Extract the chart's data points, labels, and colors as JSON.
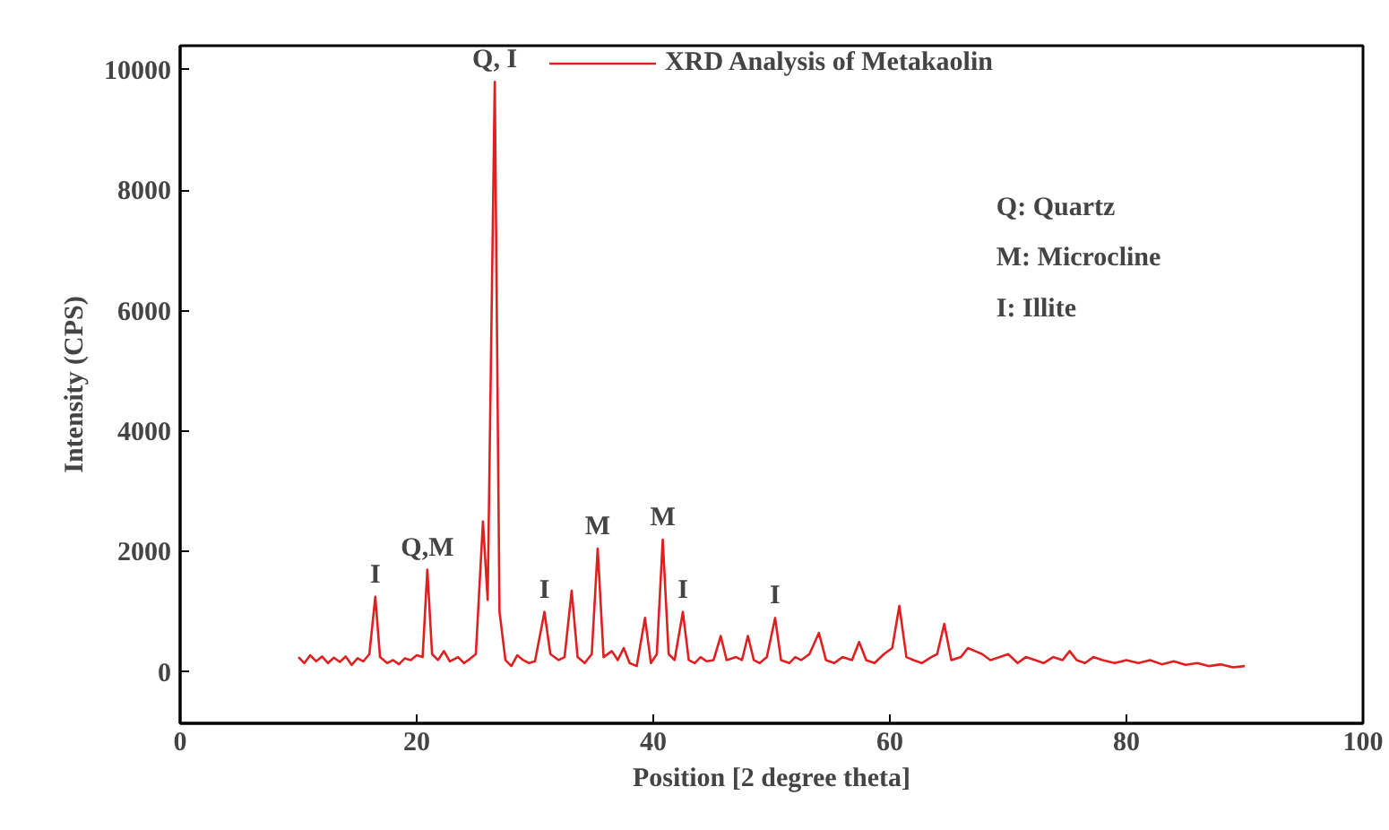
{
  "chart_data": {
    "type": "line",
    "xlabel": "Position [2 degree theta]",
    "ylabel": "Intensity (CPS)",
    "xlim": [
      0,
      100
    ],
    "xticks": [
      0,
      20,
      40,
      60,
      80,
      100
    ],
    "ylim": [
      -850,
      10400
    ],
    "yticks": [
      0,
      2000,
      4000,
      6000,
      8000,
      10000
    ],
    "grid": false,
    "legend": "top",
    "marker": "none",
    "line_style": "solid",
    "series": [
      {
        "name": "XRD Analysis of Metakaolin",
        "color": "#e02020",
        "x": [
          10,
          10.5,
          11,
          11.5,
          12,
          12.5,
          13,
          13.5,
          14,
          14.5,
          15,
          15.5,
          16,
          16.5,
          16.9,
          17.5,
          18,
          18.5,
          19,
          19.5,
          20,
          20.5,
          20.9,
          21.3,
          21.8,
          22.3,
          22.8,
          23.5,
          24,
          24.5,
          25,
          25.6,
          26,
          26.6,
          27.0,
          27.5,
          28,
          28.5,
          29,
          29.5,
          30,
          30.8,
          31.3,
          32,
          32.5,
          33.1,
          33.6,
          34.2,
          34.8,
          35.3,
          35.8,
          36.5,
          37,
          37.5,
          38,
          38.6,
          39.3,
          39.8,
          40.3,
          40.8,
          41.3,
          41.8,
          42.5,
          43,
          43.5,
          44,
          44.5,
          45.1,
          45.7,
          46.2,
          47,
          47.5,
          48,
          48.5,
          49,
          49.6,
          50.3,
          50.8,
          51.5,
          52,
          52.5,
          53.2,
          54,
          54.6,
          55.3,
          56,
          56.8,
          57.4,
          58,
          58.7,
          59.5,
          60.2,
          60.8,
          61.4,
          62,
          62.7,
          63.5,
          64,
          64.6,
          65.2,
          66,
          66.6,
          67.2,
          67.8,
          68.5,
          69.3,
          70,
          70.8,
          71.5,
          72.3,
          73,
          73.8,
          74.6,
          75.2,
          75.8,
          76.5,
          77.2,
          78,
          79,
          80,
          81,
          82,
          83,
          84,
          85,
          86,
          87,
          88,
          89,
          90
        ],
        "values": [
          250,
          150,
          280,
          180,
          260,
          150,
          240,
          170,
          260,
          120,
          230,
          180,
          300,
          1250,
          250,
          150,
          200,
          130,
          230,
          200,
          280,
          250,
          1700,
          300,
          200,
          350,
          180,
          250,
          150,
          220,
          300,
          2500,
          1200,
          9800,
          1000,
          200,
          100,
          280,
          200,
          150,
          180,
          1000,
          300,
          200,
          250,
          1350,
          250,
          150,
          300,
          2050,
          250,
          350,
          200,
          400,
          150,
          100,
          900,
          150,
          300,
          2200,
          300,
          200,
          1000,
          200,
          150,
          250,
          180,
          200,
          600,
          200,
          250,
          200,
          600,
          200,
          150,
          250,
          900,
          200,
          150,
          250,
          200,
          300,
          650,
          200,
          150,
          250,
          200,
          500,
          200,
          150,
          300,
          400,
          1100,
          250,
          200,
          150,
          250,
          300,
          800,
          200,
          250,
          400,
          350,
          300,
          200,
          250,
          300,
          150,
          250,
          200,
          150,
          250,
          200,
          350,
          200,
          150,
          250,
          200,
          150,
          200,
          150,
          200,
          130,
          180,
          120,
          150,
          100,
          130,
          80,
          100
        ]
      }
    ],
    "annotations": [
      {
        "text": "I",
        "x": 16.5,
        "y": 1250
      },
      {
        "text": "Q,M",
        "x": 20.9,
        "y": 1700
      },
      {
        "text": "Q, I",
        "x": 26.6,
        "y": 9800
      },
      {
        "text": "I",
        "x": 30.8,
        "y": 1000
      },
      {
        "text": "M",
        "x": 35.3,
        "y": 2050
      },
      {
        "text": "M",
        "x": 40.8,
        "y": 2200
      },
      {
        "text": "I",
        "x": 42.5,
        "y": 1000
      },
      {
        "text": "I",
        "x": 50.3,
        "y": 900
      },
      "Q: Quartz",
      "M: Microcline",
      "I: Illite"
    ]
  }
}
